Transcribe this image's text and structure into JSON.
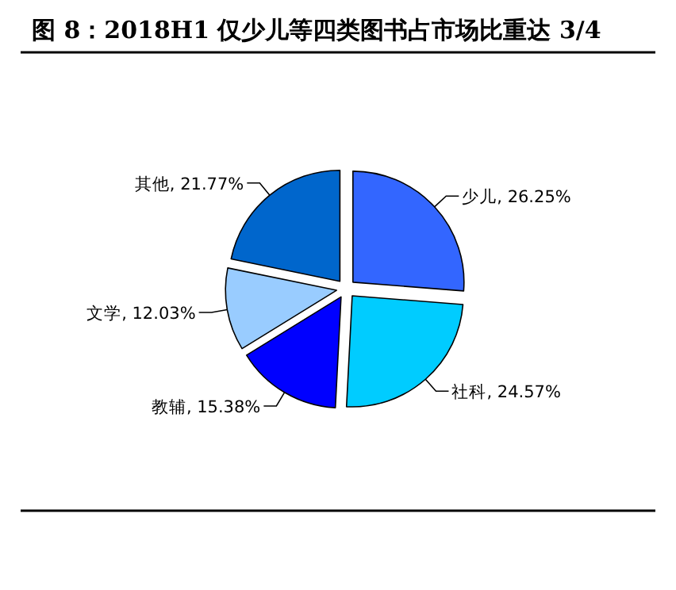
{
  "chart_data": {
    "type": "pie",
    "title": "图 8：2018H1 仅少儿等四类图书占市场比重达 3/4",
    "categories": [
      "少儿",
      "社科",
      "教辅",
      "文学",
      "其他"
    ],
    "values": [
      26.25,
      24.57,
      15.38,
      12.03,
      21.77
    ],
    "value_labels": [
      ", 26.25%",
      ", 24.57%",
      ", 15.38%",
      ", 12.03%",
      ", 21.77%"
    ],
    "colors": [
      "#3366ff",
      "#00ccff",
      "#0000ff",
      "#99ccff",
      "#0066cc"
    ]
  }
}
